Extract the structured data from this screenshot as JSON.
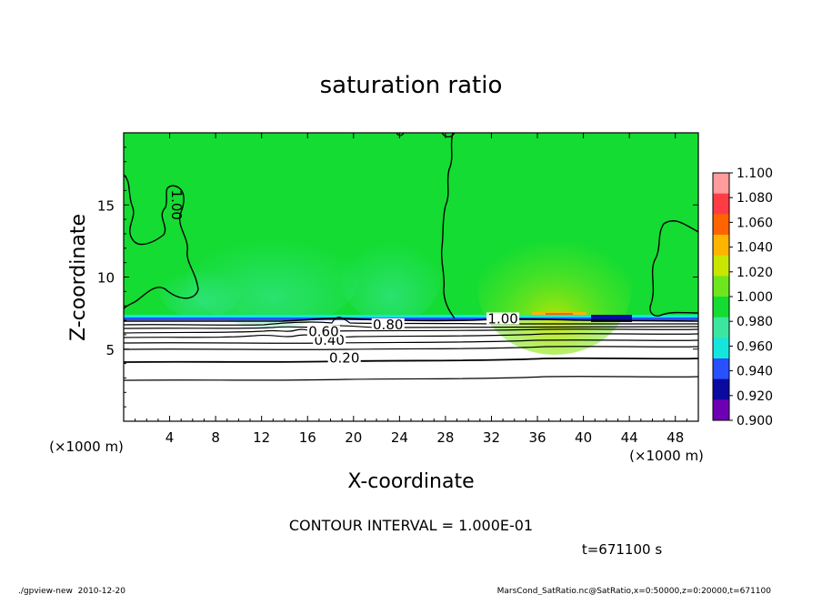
{
  "chart_data": {
    "type": "heatmap",
    "title": "saturation ratio",
    "xlabel": "X-coordinate",
    "ylabel": "Z-coordinate",
    "x_unit": "(×1000 m)",
    "y_unit": "(×1000 m)",
    "xlim": [
      0,
      50
    ],
    "ylim": [
      0,
      20
    ],
    "x_ticks": [
      "4",
      "8",
      "12",
      "16",
      "20",
      "24",
      "28",
      "32",
      "36",
      "40",
      "44",
      "48"
    ],
    "y_ticks": [
      "5",
      "10",
      "15"
    ],
    "colorbar": {
      "levels": [
        "1.100",
        "1.080",
        "1.060",
        "1.040",
        "1.020",
        "1.000",
        "0.980",
        "0.960",
        "0.940",
        "0.920",
        "0.900"
      ],
      "colors": [
        "#ff9b9b",
        "#ff3c46",
        "#ff6400",
        "#ffb400",
        "#c8e600",
        "#6ee61e",
        "#14dc32",
        "#3ce6a0",
        "#14e6dc",
        "#2850ff",
        "#0a0aa0",
        "#6e00b4"
      ]
    },
    "contour_interval": "CONTOUR INTERVAL = 1.000E-01",
    "contour_labels": [
      {
        "text": "0.20",
        "x": 19.2,
        "z": 4.4
      },
      {
        "text": "0.40",
        "x": 17.9,
        "z": 5.6
      },
      {
        "text": "0.60",
        "x": 17.4,
        "z": 6.2
      },
      {
        "text": "0.80",
        "x": 23.0,
        "z": 6.7
      },
      {
        "text": "1.00",
        "x": 33.0,
        "z": 7.1
      },
      {
        "text": "1.00",
        "x": 4.6,
        "z": 15.0
      }
    ],
    "series": [
      {
        "name": "",
        "z_interface": 7.0
      }
    ]
  },
  "annotations": {
    "time": "t=671100 s",
    "footer_left": "./gpview-new  2010-12-20",
    "footer_right": "MarsCond_SatRatio.nc@SatRatio,x=0:50000,z=0:20000,t=671100"
  }
}
